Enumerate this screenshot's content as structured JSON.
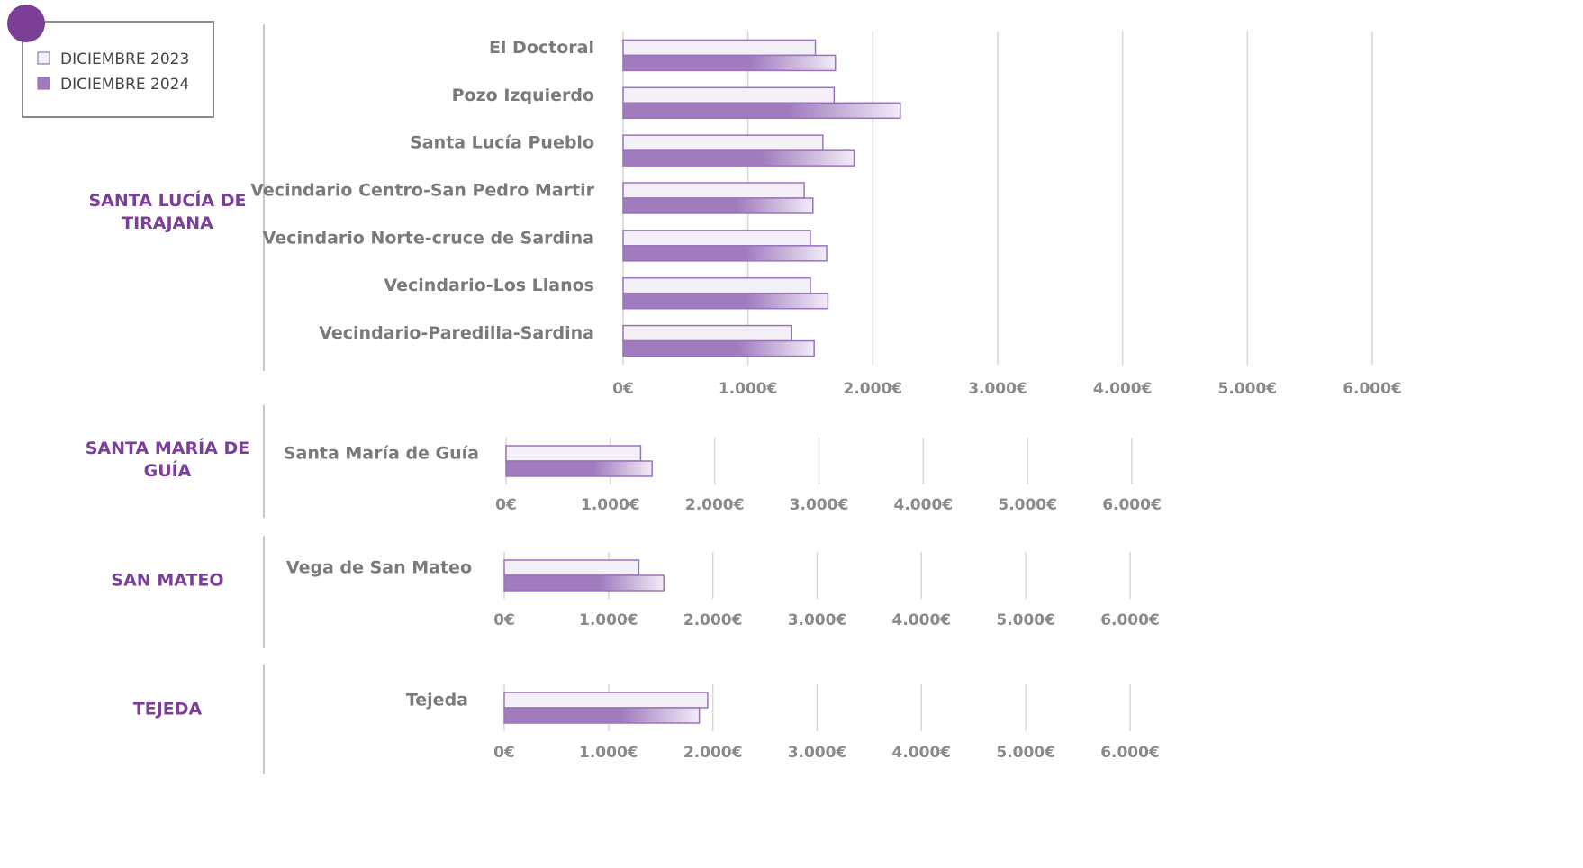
{
  "chart_data": [
    {
      "type": "bar",
      "orientation": "horizontal",
      "title": "SANTA LUCÍA DE TIRAJANA",
      "categories": [
        "El Doctoral",
        "Pozo Izquierdo",
        "Santa Lucía Pueblo",
        "Vecindario Centro-San Pedro Martir",
        "Vecindario Norte-cruce de Sardina",
        "Vecindario-Los Llanos",
        "Vecindario-Paredilla-Sardina"
      ],
      "series": [
        {
          "name": "DICIEMBRE 2023",
          "color": "#f4f0f8",
          "values": [
            1540,
            1690,
            1600,
            1450,
            1500,
            1500,
            1350
          ]
        },
        {
          "name": "DICIEMBRE 2024",
          "color": "#a07cbf",
          "values": [
            1700,
            2220,
            1850,
            1520,
            1630,
            1640,
            1530
          ]
        }
      ],
      "xlim": [
        0,
        6000
      ],
      "xticks": [
        {
          "value": 0,
          "label": "0€"
        },
        {
          "value": 1000,
          "label": "1.000€"
        },
        {
          "value": 2000,
          "label": "2.000€"
        },
        {
          "value": 3000,
          "label": "3.000€"
        },
        {
          "value": 4000,
          "label": "4.000€"
        },
        {
          "value": 5000,
          "label": "5.000€"
        },
        {
          "value": 6000,
          "label": "6.000€"
        }
      ],
      "grid": true,
      "legend": "top-left"
    },
    {
      "type": "bar",
      "orientation": "horizontal",
      "title": "SANTA MARÍA DE GUÍA",
      "categories": [
        "Santa María de Guía"
      ],
      "series": [
        {
          "color": "#f4f0f8",
          "values": [
            1290
          ]
        },
        {
          "color": "#a07cbf",
          "values": [
            1400
          ]
        }
      ],
      "xlim": [
        0,
        6000
      ],
      "xticks": [
        {
          "value": 0,
          "label": "0€"
        },
        {
          "value": 1000,
          "label": "1.000€"
        },
        {
          "value": 2000,
          "label": "2.000€"
        },
        {
          "value": 3000,
          "label": "3.000€"
        },
        {
          "value": 4000,
          "label": "4.000€"
        },
        {
          "value": 5000,
          "label": "5.000€"
        },
        {
          "value": 6000,
          "label": "6.000€"
        }
      ],
      "grid": true
    },
    {
      "type": "bar",
      "orientation": "horizontal",
      "title": "SAN MATEO",
      "categories": [
        "Vega de San Mateo"
      ],
      "series": [
        {
          "color": "#f4f0f8",
          "values": [
            1290
          ]
        },
        {
          "color": "#a07cbf",
          "values": [
            1530
          ]
        }
      ],
      "xlim": [
        0,
        6000
      ],
      "xticks": [
        {
          "value": 0,
          "label": "0€"
        },
        {
          "value": 1000,
          "label": "1.000€"
        },
        {
          "value": 2000,
          "label": "2.000€"
        },
        {
          "value": 3000,
          "label": "3.000€"
        },
        {
          "value": 4000,
          "label": "4.000€"
        },
        {
          "value": 5000,
          "label": "5.000€"
        },
        {
          "value": 6000,
          "label": "6.000€"
        }
      ],
      "grid": true
    },
    {
      "type": "bar",
      "orientation": "horizontal",
      "title": "TEJEDA",
      "categories": [
        "Tejeda"
      ],
      "series": [
        {
          "color": "#f4f0f8",
          "values": [
            1950
          ]
        },
        {
          "color": "#a07cbf",
          "values": [
            1870
          ]
        }
      ],
      "xlim": [
        0,
        6000
      ],
      "xticks": [
        {
          "value": 0,
          "label": "0€"
        },
        {
          "value": 1000,
          "label": "1.000€"
        },
        {
          "value": 2000,
          "label": "2.000€"
        },
        {
          "value": 3000,
          "label": "3.000€"
        },
        {
          "value": 4000,
          "label": "4.000€"
        },
        {
          "value": 5000,
          "label": "5.000€"
        },
        {
          "value": 6000,
          "label": "6.000€"
        }
      ],
      "grid": true
    }
  ]
}
